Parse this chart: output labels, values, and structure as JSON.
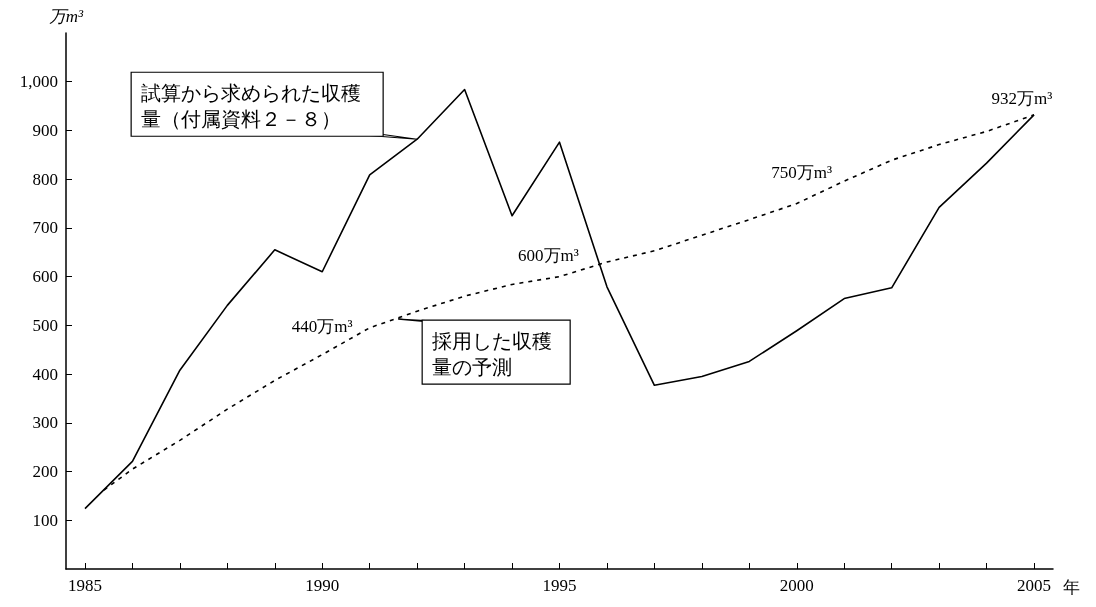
{
  "chart_data": {
    "type": "line",
    "xlabel": "年",
    "ylabel": "万m³",
    "xlim": [
      1984.6,
      2005.4
    ],
    "ylim": [
      0,
      1100
    ],
    "xticks": [
      1985,
      {
        "value": 1986,
        "label": null
      },
      {
        "value": 1987,
        "label": null
      },
      {
        "value": 1988,
        "label": null
      },
      {
        "value": 1989,
        "label": null
      },
      1990,
      {
        "value": 1991,
        "label": null
      },
      {
        "value": 1992,
        "label": null
      },
      {
        "value": 1993,
        "label": null
      },
      {
        "value": 1994,
        "label": null
      },
      1995,
      {
        "value": 1996,
        "label": null
      },
      {
        "value": 1997,
        "label": null
      },
      {
        "value": 1998,
        "label": null
      },
      {
        "value": 1999,
        "label": null
      },
      2000,
      {
        "value": 2001,
        "label": null
      },
      {
        "value": 2002,
        "label": null
      },
      {
        "value": 2003,
        "label": null
      },
      {
        "value": 2004,
        "label": null
      },
      2005
    ],
    "yticks": [
      100,
      200,
      300,
      400,
      500,
      600,
      700,
      800,
      900,
      {
        "value": 1000,
        "label": "1,000"
      }
    ],
    "marker": "none",
    "series": [
      {
        "color": "#000000",
        "line_style": "solid",
        "x": [
          1985,
          1986,
          1987,
          1988,
          1989,
          1990,
          1991,
          1992,
          1993,
          1994,
          1995,
          1996,
          1997,
          1998,
          1999,
          2000,
          2001,
          2002,
          2003,
          2004,
          2005
        ],
        "values": [
          124,
          221,
          408,
          541,
          655,
          610,
          809,
          882,
          984,
          725,
          876,
          579,
          377,
          395,
          426,
          489,
          555,
          577,
          742,
          833,
          932
        ]
      },
      {
        "color": "#000000",
        "line_style": "dashed",
        "x": [
          1985.4,
          1986,
          1987,
          1988,
          1989,
          1990,
          1991,
          1992,
          1993,
          1994,
          1995,
          1996,
          1997,
          1998,
          1999,
          2000,
          2001,
          2002,
          2003,
          2004,
          2005
        ],
        "values": [
          162,
          205,
          264,
          328,
          387,
          440,
          495,
          529,
          560,
          584,
          600,
          630,
          653,
          685,
          717,
          750,
          796,
          839,
          871,
          898,
          932
        ]
      }
    ],
    "annotations": [
      {
        "text": "試算から求められた収穫量（付属資料２－８）",
        "x": 1992,
        "y": 882
      },
      {
        "text": "採用した収穫量の予測",
        "x": 1991.6,
        "y": 513
      },
      {
        "text": "440万m³",
        "x": 1990,
        "y": 440
      },
      {
        "text": "600万m³",
        "x": 1995,
        "y": 600
      },
      {
        "text": "750万m³",
        "x": 2000,
        "y": 750
      },
      {
        "text": "932万m³",
        "x": 2005,
        "y": 932
      }
    ]
  }
}
